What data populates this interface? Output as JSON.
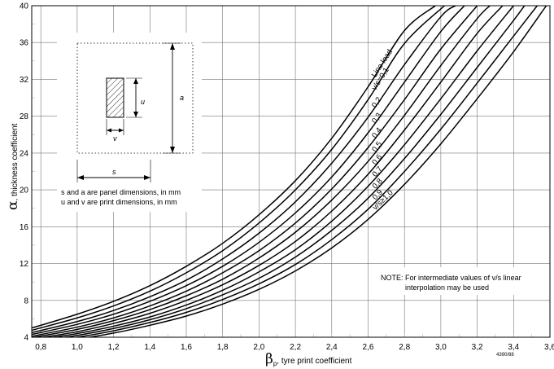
{
  "chart_data": {
    "type": "line",
    "xlabel": "β",
    "xlabel_sub": "p",
    "xlabel_rest": ", tyre print coefficient",
    "ylabel": "α",
    "ylabel_rest": ", thickness coefficient",
    "xlim": [
      0.75,
      3.6
    ],
    "ylim": [
      4,
      40
    ],
    "x_ticks": [
      0.8,
      1.0,
      1.2,
      1.4,
      1.6,
      1.8,
      2.0,
      2.2,
      2.4,
      2.6,
      2.8,
      3.0,
      3.2,
      3.4,
      3.6
    ],
    "x_tick_labels": [
      "0,8",
      "1,0",
      "1,2",
      "1,4",
      "1,6",
      "1,8",
      "2,0",
      "2,2",
      "2,4",
      "2,6",
      "2,8",
      "3,0",
      "3,2",
      "3,4",
      "3,6"
    ],
    "y_ticks": [
      4,
      8,
      12,
      16,
      20,
      24,
      28,
      32,
      36,
      40
    ],
    "y_tick_labels": [
      "4",
      "8",
      "12",
      "16",
      "20",
      "24",
      "28",
      "32",
      "36",
      "40"
    ],
    "grid": true,
    "series": [
      {
        "name": "Line load",
        "x": [
          0.75,
          1.0,
          1.2,
          1.4,
          1.6,
          1.8,
          2.0,
          2.2,
          2.4,
          2.6,
          2.8,
          2.97
        ],
        "y": [
          5.0,
          6.5,
          7.9,
          9.6,
          11.7,
          14.2,
          17.3,
          21.0,
          25.6,
          31.2,
          37.3,
          40.0
        ]
      },
      {
        "name": "v/s=0,1",
        "x": [
          0.75,
          1.0,
          1.2,
          1.4,
          1.6,
          1.8,
          2.0,
          2.2,
          2.4,
          2.6,
          2.8,
          3.02
        ],
        "y": [
          4.75,
          6.1,
          7.4,
          9.0,
          11.0,
          13.4,
          16.4,
          20.0,
          24.4,
          29.8,
          35.9,
          40.0
        ]
      },
      {
        "name": "0,2",
        "x": [
          0.75,
          1.0,
          1.2,
          1.4,
          1.6,
          1.8,
          2.0,
          2.2,
          2.4,
          2.6,
          2.8,
          3.0,
          3.08
        ],
        "y": [
          4.5,
          5.7,
          6.9,
          8.4,
          10.2,
          12.5,
          15.3,
          18.7,
          22.9,
          27.9,
          33.6,
          38.8,
          40.0
        ]
      },
      {
        "name": "0,3",
        "x": [
          0.75,
          1.0,
          1.2,
          1.4,
          1.6,
          1.8,
          2.0,
          2.2,
          2.4,
          2.6,
          2.8,
          3.0,
          3.13
        ],
        "y": [
          4.3,
          5.4,
          6.5,
          7.9,
          9.6,
          11.7,
          14.3,
          17.5,
          21.4,
          26.2,
          31.7,
          37.2,
          40.0
        ]
      },
      {
        "name": "0,4",
        "x": [
          0.75,
          1.0,
          1.2,
          1.4,
          1.6,
          1.8,
          2.0,
          2.2,
          2.4,
          2.6,
          2.8,
          3.0,
          3.2
        ],
        "y": [
          4.1,
          5.1,
          6.1,
          7.4,
          9.0,
          11.0,
          13.4,
          16.4,
          20.1,
          24.6,
          29.8,
          35.3,
          40.0
        ]
      },
      {
        "name": "0,5",
        "x": [
          0.75,
          1.0,
          1.2,
          1.4,
          1.6,
          1.8,
          2.0,
          2.2,
          2.4,
          2.6,
          2.8,
          3.0,
          3.2,
          3.27
        ],
        "y": [
          3.95,
          4.85,
          5.8,
          7.0,
          8.5,
          10.3,
          12.6,
          15.4,
          18.9,
          23.1,
          28.1,
          33.5,
          38.6,
          40.0
        ]
      },
      {
        "name": "0,6",
        "x": [
          0.75,
          1.0,
          1.2,
          1.4,
          1.6,
          1.8,
          2.0,
          2.2,
          2.4,
          2.6,
          2.8,
          3.0,
          3.2,
          3.34
        ],
        "y": [
          3.8,
          4.6,
          5.5,
          6.6,
          8.0,
          9.7,
          11.8,
          14.4,
          17.7,
          21.7,
          26.5,
          31.7,
          37.0,
          40.0
        ]
      },
      {
        "name": "0,7",
        "x": [
          0.75,
          1.0,
          1.2,
          1.4,
          1.6,
          1.8,
          2.0,
          2.2,
          2.4,
          2.6,
          2.8,
          3.0,
          3.2,
          3.4
        ],
        "y": [
          3.65,
          4.4,
          5.2,
          6.2,
          7.5,
          9.1,
          11.1,
          13.5,
          16.6,
          20.4,
          24.9,
          29.9,
          35.1,
          40.0
        ]
      },
      {
        "name": "0,8",
        "x": [
          0.75,
          1.0,
          1.2,
          1.4,
          1.6,
          1.8,
          2.0,
          2.2,
          2.4,
          2.6,
          2.8,
          3.0,
          3.2,
          3.4,
          3.46
        ],
        "y": [
          3.5,
          4.2,
          4.95,
          5.9,
          7.1,
          8.6,
          10.4,
          12.7,
          15.6,
          19.1,
          23.4,
          28.2,
          33.3,
          38.4,
          40.0
        ]
      },
      {
        "name": "0,9",
        "x": [
          0.75,
          1.0,
          1.2,
          1.4,
          1.6,
          1.8,
          2.0,
          2.2,
          2.4,
          2.6,
          2.8,
          3.0,
          3.2,
          3.4,
          3.53
        ],
        "y": [
          3.35,
          4.0,
          4.7,
          5.6,
          6.7,
          8.1,
          9.8,
          11.9,
          14.6,
          17.9,
          22.0,
          26.6,
          31.6,
          36.7,
          40.0
        ]
      },
      {
        "name": "v/s≥1,0",
        "x": [
          0.75,
          1.0,
          1.2,
          1.4,
          1.6,
          1.8,
          2.0,
          2.2,
          2.4,
          2.6,
          2.8,
          3.0,
          3.2,
          3.4,
          3.58
        ],
        "y": [
          3.2,
          3.8,
          4.45,
          5.3,
          6.3,
          7.6,
          9.2,
          11.2,
          13.7,
          16.8,
          20.6,
          25.0,
          29.9,
          35.0,
          40.0
        ]
      }
    ],
    "curve_labels": [
      "Line load",
      "v/s=0,1",
      "0,2",
      "0,3",
      "0,4",
      "0,5",
      "0,6",
      "0,7",
      "0,8",
      "0,9",
      "v/s≥1,0"
    ],
    "note": {
      "prefix": "NOTE: ",
      "line1": "For intermediate values of v/s linear",
      "line2": "interpolation may be used"
    },
    "inset": {
      "label_a": "a",
      "label_s": "s",
      "label_u": "u",
      "label_v": "v",
      "caption1": "s and a are panel dimensions, in mm",
      "caption2": "u and v are print dimensions, in mm"
    },
    "ref_code": "4390/88"
  }
}
